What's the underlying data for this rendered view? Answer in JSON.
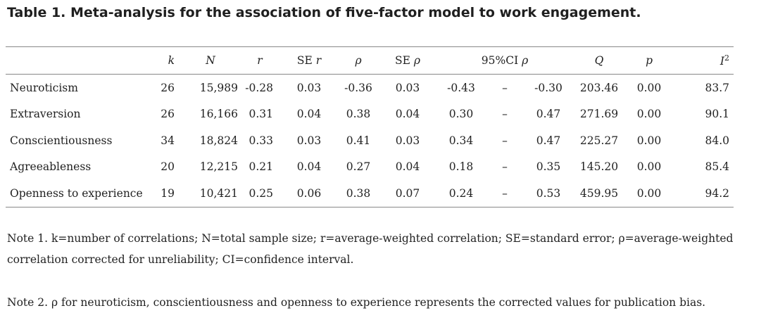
{
  "title": "Table 1. Meta-analysis for the association of five-factor model to work engagement.",
  "headers": {
    "k": "k",
    "N": "N",
    "r": "r",
    "se_r_prefix": "SE",
    "se_r_sym": "r",
    "rho": "ρ",
    "se_rho_prefix": "SE",
    "se_rho_sym": "ρ",
    "ci_prefix": "95%CI",
    "ci_sym": "ρ",
    "Q": "Q",
    "p": "p",
    "I": "I",
    "I_sup": "2"
  },
  "rows": [
    {
      "factor": "Neuroticism",
      "k": "26",
      "N": "15,989",
      "r": "-0.28",
      "se_r": "0.03",
      "rho": "-0.36",
      "se_rho": "0.03",
      "ci_low": "-0.43",
      "ci_dash": "–",
      "ci_high": "-0.30",
      "Q": "203.46",
      "p": "0.00",
      "I2": "83.7"
    },
    {
      "factor": "Extraversion",
      "k": "26",
      "N": "16,166",
      "r": "0.31",
      "se_r": "0.04",
      "rho": "0.38",
      "se_rho": "0.04",
      "ci_low": "0.30",
      "ci_dash": "–",
      "ci_high": "0.47",
      "Q": "271.69",
      "p": "0.00",
      "I2": "90.1"
    },
    {
      "factor": "Conscientiousness",
      "k": "34",
      "N": "18,824",
      "r": "0.33",
      "se_r": "0.03",
      "rho": "0.41",
      "se_rho": "0.03",
      "ci_low": "0.34",
      "ci_dash": "–",
      "ci_high": "0.47",
      "Q": "225.27",
      "p": "0.00",
      "I2": "84.0"
    },
    {
      "factor": "Agreeableness",
      "k": "20",
      "N": "12,215",
      "r": "0.21",
      "se_r": "0.04",
      "rho": "0.27",
      "se_rho": "0.04",
      "ci_low": "0.18",
      "ci_dash": "–",
      "ci_high": "0.35",
      "Q": "145.20",
      "p": "0.00",
      "I2": "85.4"
    },
    {
      "factor": "Openness to experience",
      "k": "19",
      "N": "10,421",
      "r": "0.25",
      "se_r": "0.06",
      "rho": "0.38",
      "se_rho": "0.07",
      "ci_low": "0.24",
      "ci_dash": "–",
      "ci_high": "0.53",
      "Q": "459.95",
      "p": "0.00",
      "I2": "94.2"
    }
  ],
  "note1": "Note 1. k=number of correlations; N=total sample size; r=average-weighted correlation; SE=standard error; ρ=average-weighted correlation corrected for unreliability; CI=confidence interval.",
  "note2": "Note 2. ρ for neuroticism, conscientiousness and openness to experience represents the corrected values for publication bias."
}
